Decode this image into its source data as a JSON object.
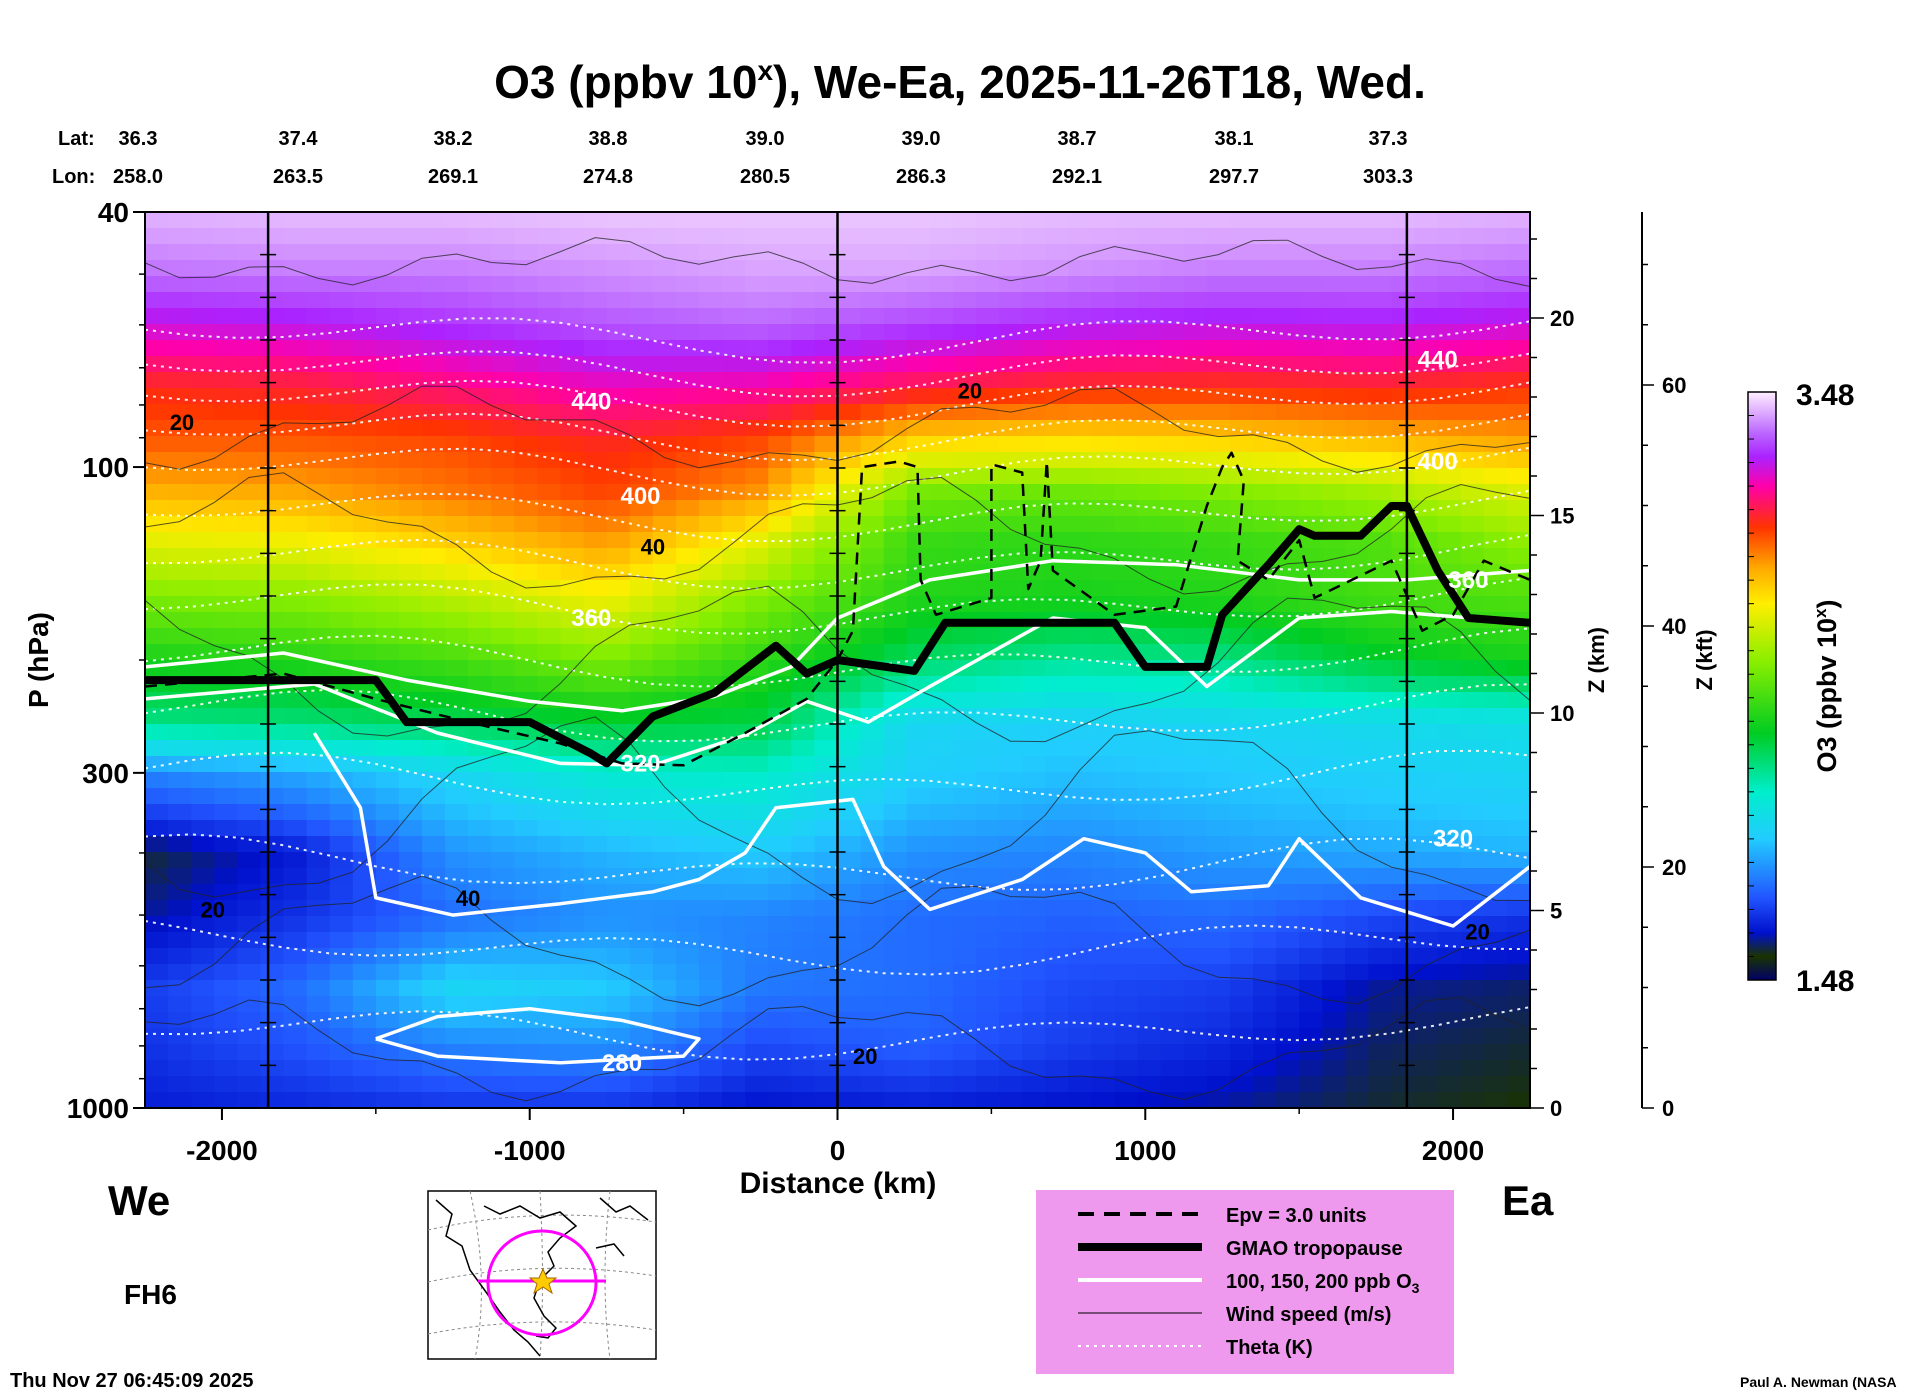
{
  "title": "O3 (ppbv 10",
  "title_sup": "x",
  "title_rest": "), We-Ea, 2025-11-26T18, Wed.",
  "lat_label": "Lat:",
  "lon_label": "Lon:",
  "lats": [
    "36.3",
    "37.4",
    "38.2",
    "38.8",
    "39.0",
    "39.0",
    "38.7",
    "38.1",
    "37.3"
  ],
  "lons": [
    "258.0",
    "263.5",
    "269.1",
    "274.8",
    "280.5",
    "286.3",
    "292.1",
    "297.7",
    "303.3"
  ],
  "footer": {
    "timestamp": "Thu Nov 27 06:45:09 2025",
    "credit": "Paul A. Newman (NASA",
    "west": "We",
    "east": "Ea",
    "forecast_hour": "FH6"
  },
  "legend": {
    "items": [
      {
        "label": "Epv = 3.0 units",
        "style": "dashed"
      },
      {
        "label": "GMAO tropopause",
        "style": "thick"
      },
      {
        "label": "100, 150, 200 ppb O",
        "sub": "3",
        "style": "white"
      },
      {
        "label": "Wind speed (m/s)",
        "style": "thin"
      },
      {
        "label": "Theta (K)",
        "style": "dotted"
      }
    ]
  },
  "colors": {
    "background": "#ffffff",
    "legend_bg": "#ee99ee",
    "map_circle": "#ff00ff",
    "star": "#ffcc00"
  },
  "chart_data": {
    "type": "heatmap",
    "title": "O3 (ppbv 10^x), We-Ea, 2025-11-26T18, Wed.",
    "xlabel": "Distance (km)",
    "ylabel": "P (hPa)",
    "y2label": "Z (km)",
    "y3label": "Z (kft)",
    "colorbar_label": "O3 (ppbv 10",
    "colorbar_label_sup": "x",
    "colorbar_label_close": ")",
    "xlim": [
      -2250,
      2250
    ],
    "ylim": [
      1000,
      40
    ],
    "x_ticks": [
      -2000,
      -1000,
      0,
      1000,
      2000
    ],
    "x_tick_labels": [
      "-2000",
      "-1000",
      "0",
      "1000",
      "2000"
    ],
    "y_ticks": [
      40,
      100,
      300,
      1000
    ],
    "y_tick_labels": [
      "40",
      "100",
      "300",
      "1000"
    ],
    "z_km_ticks": [
      0,
      5,
      10,
      15,
      20
    ],
    "z_km_labels": [
      "0",
      "5",
      "10",
      "15",
      "20"
    ],
    "z_kft_ticks": [
      0,
      20,
      40,
      60
    ],
    "z_kft_labels": [
      "0",
      "20",
      "40",
      "60"
    ],
    "colorbar_range": [
      1.48,
      3.48
    ],
    "colorbar_labels": [
      "3.48",
      "1.48"
    ],
    "ozone_field": {
      "x": [
        -2250,
        -1750,
        -1250,
        -750,
        -250,
        250,
        750,
        1250,
        1750,
        2250
      ],
      "p": [
        40,
        50,
        60,
        75,
        90,
        110,
        130,
        160,
        200,
        250,
        300,
        400,
        500,
        650,
        800,
        1000
      ],
      "log10_ppbv": [
        [
          3.42,
          3.43,
          3.43,
          3.44,
          3.44,
          3.44,
          3.43,
          3.43,
          3.43,
          3.42
        ],
        [
          3.35,
          3.36,
          3.36,
          3.38,
          3.4,
          3.4,
          3.38,
          3.36,
          3.36,
          3.34
        ],
        [
          3.22,
          3.24,
          3.28,
          3.32,
          3.34,
          3.3,
          3.26,
          3.24,
          3.25,
          3.22
        ],
        [
          3.04,
          3.06,
          3.12,
          3.18,
          3.16,
          3.08,
          3.04,
          3.03,
          3.05,
          3.02
        ],
        [
          2.98,
          2.98,
          3.0,
          3.05,
          3.0,
          2.82,
          2.8,
          2.82,
          2.86,
          2.9
        ],
        [
          2.86,
          2.88,
          2.94,
          3.0,
          2.9,
          2.52,
          2.5,
          2.54,
          2.6,
          2.7
        ],
        [
          2.72,
          2.74,
          2.82,
          2.9,
          2.72,
          2.42,
          2.4,
          2.42,
          2.46,
          2.58
        ],
        [
          2.54,
          2.56,
          2.64,
          2.74,
          2.55,
          2.38,
          2.36,
          2.38,
          2.44,
          2.46
        ],
        [
          2.36,
          2.38,
          2.44,
          2.54,
          2.4,
          2.24,
          2.18,
          2.2,
          2.3,
          2.36
        ],
        [
          2.2,
          2.22,
          2.26,
          2.3,
          2.28,
          2.0,
          1.98,
          2.0,
          2.02,
          2.04
        ],
        [
          1.84,
          1.9,
          2.0,
          2.1,
          2.12,
          1.98,
          1.94,
          1.96,
          1.98,
          2.0
        ],
        [
          1.58,
          1.66,
          1.86,
          1.92,
          1.96,
          1.86,
          1.84,
          1.88,
          1.9,
          1.92
        ],
        [
          1.62,
          1.7,
          1.8,
          1.86,
          1.84,
          1.8,
          1.78,
          1.8,
          1.74,
          1.7
        ],
        [
          1.72,
          1.8,
          2.0,
          1.96,
          1.82,
          1.8,
          1.74,
          1.72,
          1.62,
          1.6
        ],
        [
          1.7,
          1.76,
          1.84,
          1.86,
          1.74,
          1.78,
          1.72,
          1.68,
          1.6,
          1.58
        ],
        [
          1.66,
          1.68,
          1.7,
          1.7,
          1.64,
          1.66,
          1.64,
          1.62,
          1.58,
          1.56
        ]
      ]
    },
    "tropopause": {
      "x": [
        -2250,
        -1500,
        -1400,
        -1000,
        -800,
        -750,
        -600,
        -400,
        -200,
        -100,
        0,
        250,
        350,
        500,
        900,
        1000,
        1200,
        1250,
        1400,
        1500,
        1550,
        1700,
        1800,
        1850,
        1950,
        2050,
        2250
      ],
      "p": [
        215,
        215,
        250,
        250,
        280,
        290,
        245,
        225,
        190,
        210,
        200,
        208,
        175,
        175,
        175,
        205,
        205,
        170,
        142,
        125,
        128,
        128,
        115,
        115,
        145,
        172,
        175
      ]
    },
    "theta_labels": [
      {
        "text": "440",
        "x": -800,
        "p": 79
      },
      {
        "text": "400",
        "x": -640,
        "p": 111
      },
      {
        "text": "360",
        "x": -800,
        "p": 172
      },
      {
        "text": "320",
        "x": -640,
        "p": 290
      },
      {
        "text": "280",
        "x": -700,
        "p": 850
      },
      {
        "text": "440",
        "x": 1950,
        "p": 68
      },
      {
        "text": "400",
        "x": 1950,
        "p": 98
      },
      {
        "text": "360",
        "x": 2050,
        "p": 150
      },
      {
        "text": "320",
        "x": 2000,
        "p": 380
      }
    ],
    "wind_labels": [
      {
        "text": "20",
        "x": -2130,
        "p": 85
      },
      {
        "text": "40",
        "x": -600,
        "p": 133
      },
      {
        "text": "20",
        "x": 430,
        "p": 76
      },
      {
        "text": "20",
        "x": -2030,
        "p": 490
      },
      {
        "text": "40",
        "x": -1200,
        "p": 470
      },
      {
        "text": "20",
        "x": 90,
        "p": 830
      },
      {
        "text": "20",
        "x": 2080,
        "p": 530
      }
    ]
  }
}
